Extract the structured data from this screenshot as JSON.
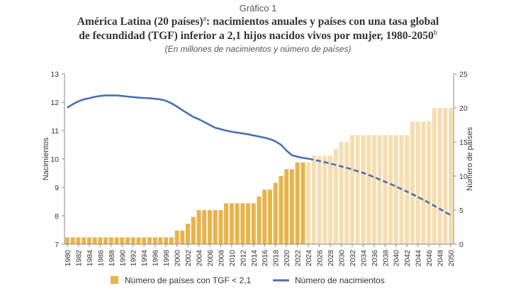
{
  "header": {
    "figure_label": "Gráfico 1",
    "title_line1_a": "América Latina (20 países)",
    "title_line1_sup": "a",
    "title_line1_b": ": nacimientos anuales y países con una tasa global",
    "title_line2": "de fecundidad (TGF) inferior a 2,1 hijos nacidos vivos por mujer, 1980-2050",
    "title_line2_sup": "b",
    "subtitle": "(En millones de nacimientos y número de países)"
  },
  "chart_data": {
    "type": "bar+line",
    "x": [
      1980,
      1981,
      1982,
      1983,
      1984,
      1985,
      1986,
      1987,
      1988,
      1989,
      1990,
      1991,
      1992,
      1993,
      1994,
      1995,
      1996,
      1997,
      1998,
      1999,
      2000,
      2001,
      2002,
      2003,
      2004,
      2005,
      2006,
      2007,
      2008,
      2009,
      2010,
      2011,
      2012,
      2013,
      2014,
      2015,
      2016,
      2017,
      2018,
      2019,
      2020,
      2021,
      2022,
      2023,
      2024,
      2025,
      2026,
      2027,
      2028,
      2029,
      2030,
      2031,
      2032,
      2033,
      2034,
      2035,
      2036,
      2037,
      2038,
      2039,
      2040,
      2041,
      2042,
      2043,
      2044,
      2045,
      2046,
      2047,
      2048,
      2049,
      2050
    ],
    "x_tick_labels": [
      "1980",
      "1982",
      "1984",
      "1986",
      "1988",
      "1990",
      "1992",
      "1994",
      "1996",
      "1998",
      "2000",
      "2002",
      "2004",
      "2006",
      "2008",
      "2010",
      "2012",
      "2014",
      "2016",
      "2018",
      "2020",
      "2022",
      "2024",
      "2026",
      "2028",
      "2030",
      "2032",
      "2034",
      "2036",
      "2038",
      "2040",
      "2042",
      "2044",
      "2046",
      "2048",
      "2050"
    ],
    "projection_start": 2024,
    "series": [
      {
        "name": "Número de países con TGF < 2,1",
        "type": "bar",
        "axis": "right",
        "color": "#E8B34A",
        "projection_color": "#F6DDB0",
        "values": [
          1,
          1,
          1,
          1,
          1,
          1,
          1,
          1,
          1,
          1,
          1,
          1,
          1,
          1,
          1,
          1,
          1,
          1,
          1,
          1,
          2,
          2,
          3,
          4,
          5,
          5,
          5,
          5,
          5,
          6,
          6,
          6,
          6,
          6,
          6,
          7,
          8,
          8,
          9,
          10,
          11,
          11,
          12,
          12,
          12,
          13,
          13,
          13,
          13,
          14,
          15,
          15,
          16,
          16,
          16,
          16,
          16,
          16,
          16,
          16,
          16,
          16,
          16,
          18,
          18,
          18,
          18,
          20,
          20,
          20,
          20
        ]
      },
      {
        "name": "Número de nacimientos",
        "type": "line",
        "axis": "left",
        "color": "#4A6FB5",
        "values": [
          11.81,
          11.93,
          12.03,
          12.1,
          12.14,
          12.19,
          12.22,
          12.24,
          12.24,
          12.24,
          12.22,
          12.2,
          12.18,
          12.16,
          12.15,
          12.14,
          12.12,
          12.1,
          12.05,
          11.96,
          11.85,
          11.72,
          11.6,
          11.48,
          11.4,
          11.3,
          11.2,
          11.1,
          11.05,
          11.0,
          10.96,
          10.93,
          10.9,
          10.87,
          10.83,
          10.79,
          10.75,
          10.7,
          10.62,
          10.5,
          10.3,
          10.13,
          10.08,
          10.04,
          10.01,
          9.97,
          9.93,
          9.89,
          9.84,
          9.79,
          9.74,
          9.69,
          9.63,
          9.57,
          9.51,
          9.44,
          9.36,
          9.28,
          9.2,
          9.12,
          9.03,
          8.94,
          8.85,
          8.76,
          8.66,
          8.56,
          8.46,
          8.35,
          8.24,
          8.13,
          8.02
        ]
      }
    ],
    "ylabel_left": "Nacimientos",
    "ylim_left": [
      7,
      13
    ],
    "yticks_left": [
      "7",
      "8",
      "9",
      "10",
      "11",
      "12",
      "13"
    ],
    "ylabel_right": "Número de países",
    "ylim_right": [
      0,
      25
    ],
    "yticks_right": [
      "0",
      "5",
      "10",
      "15",
      "20",
      "25"
    ],
    "grid": false,
    "legend_position": "bottom"
  }
}
